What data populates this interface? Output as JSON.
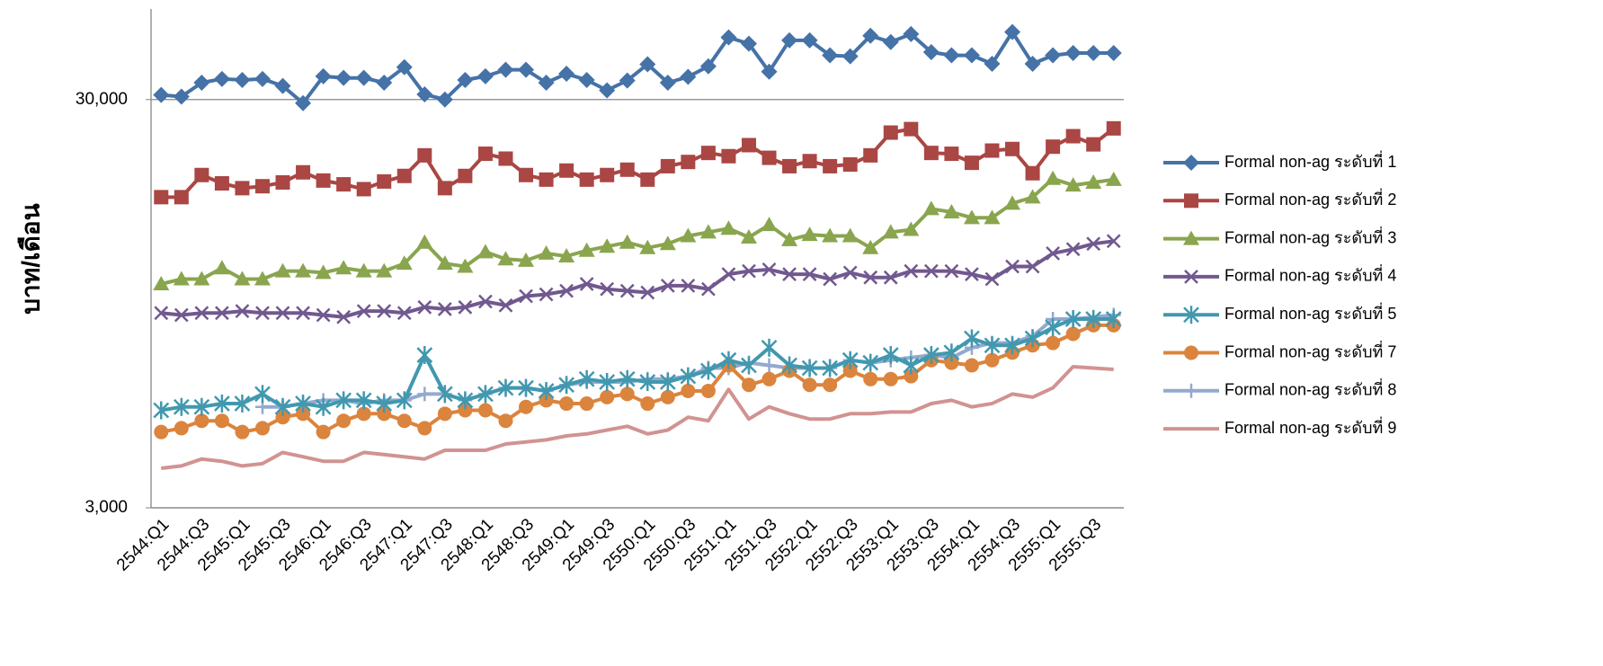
{
  "chart_data": {
    "type": "line",
    "y_label": "บาท/เดือน",
    "log_scale": true,
    "grid": true,
    "legend": "right",
    "ylim": [
      3000,
      50000
    ],
    "yticks": [
      {
        "value": 3000,
        "label": "3,000"
      },
      {
        "value": 30000,
        "label": "30,000"
      }
    ],
    "categories": [
      "2544:Q1",
      null,
      "2544:Q3",
      null,
      "2545:Q1",
      null,
      "2545:Q3",
      null,
      "2546:Q1",
      null,
      "2546:Q3",
      null,
      "2547:Q1",
      null,
      "2547:Q3",
      null,
      "2548:Q1",
      null,
      "2548:Q3",
      null,
      "2549:Q1",
      null,
      "2549:Q3",
      null,
      "2550:Q1",
      null,
      "2550:Q3",
      null,
      "2551:Q1",
      null,
      "2551:Q3",
      null,
      "2552:Q1",
      null,
      "2552:Q3",
      null,
      "2553:Q1",
      null,
      "2553:Q3",
      null,
      "2554:Q1",
      null,
      "2554:Q3",
      null,
      "2555:Q1",
      null,
      "2555:Q3",
      null
    ],
    "series": [
      {
        "name": "Formal non-ag ระดับที่ 1",
        "color": "#4572a7",
        "marker": "diamond",
        "values": [
          30800,
          30500,
          33000,
          33700,
          33500,
          33700,
          32400,
          29400,
          34200,
          33900,
          33900,
          33000,
          36000,
          30900,
          30000,
          33500,
          34200,
          35500,
          35500,
          33000,
          34700,
          33500,
          31600,
          33400,
          36600,
          33000,
          34100,
          36200,
          42600,
          41100,
          35100,
          41900,
          41900,
          38500,
          38300,
          43000,
          41500,
          43400,
          39200,
          38500,
          38500,
          36700,
          43900,
          36700,
          38500,
          39000,
          39000,
          39000
        ]
      },
      {
        "name": "Formal non-ag ระดับที่ 2",
        "color": "#aa4643",
        "marker": "square",
        "values": [
          17300,
          17300,
          19600,
          18700,
          18200,
          18400,
          18800,
          19900,
          19000,
          18600,
          18100,
          18900,
          19500,
          21900,
          18200,
          19500,
          22100,
          21500,
          19600,
          19100,
          20100,
          19100,
          19600,
          20200,
          19100,
          20600,
          21100,
          22200,
          21800,
          23200,
          21600,
          20600,
          21200,
          20600,
          20800,
          21900,
          24900,
          25400,
          22200,
          22100,
          21000,
          22500,
          22700,
          19800,
          23000,
          24400,
          23300,
          25500
        ]
      },
      {
        "name": "Formal non-ag ระดับที่ 3",
        "color": "#89a54e",
        "marker": "triangle",
        "values": [
          10600,
          10900,
          10900,
          11600,
          10900,
          10900,
          11400,
          11400,
          11300,
          11600,
          11400,
          11400,
          11900,
          13400,
          11900,
          11700,
          12700,
          12200,
          12100,
          12600,
          12400,
          12800,
          13100,
          13400,
          13000,
          13300,
          13900,
          14200,
          14500,
          13800,
          14800,
          13600,
          14000,
          13900,
          13900,
          13000,
          14200,
          14400,
          16200,
          15900,
          15400,
          15400,
          16700,
          17300,
          19200,
          18500,
          18800,
          19100
        ]
      },
      {
        "name": "Formal non-ag ระดับที่ 4",
        "color": "#71588f",
        "marker": "x",
        "values": [
          9000,
          8900,
          9000,
          9000,
          9100,
          9000,
          9000,
          9000,
          8900,
          8800,
          9100,
          9100,
          9000,
          9300,
          9200,
          9300,
          9600,
          9400,
          9900,
          10000,
          10200,
          10600,
          10300,
          10200,
          10100,
          10500,
          10500,
          10300,
          11200,
          11400,
          11500,
          11200,
          11200,
          10900,
          11300,
          11000,
          11000,
          11400,
          11400,
          11400,
          11200,
          10900,
          11700,
          11700,
          12600,
          12900,
          13300,
          13500
        ]
      },
      {
        "name": "Formal non-ag ระดับที่ 5",
        "color": "#4198af",
        "marker": "star",
        "values": [
          5200,
          5300,
          5300,
          5400,
          5400,
          5700,
          5300,
          5400,
          5300,
          5500,
          5500,
          5400,
          5500,
          7100,
          5700,
          5500,
          5700,
          5900,
          5900,
          5800,
          6000,
          6200,
          6100,
          6200,
          6100,
          6100,
          6300,
          6500,
          6900,
          6700,
          7400,
          6700,
          6600,
          6600,
          6900,
          6800,
          7100,
          6700,
          7100,
          7200,
          7800,
          7500,
          7500,
          7800,
          8300,
          8700,
          8700,
          8700
        ]
      },
      {
        "name": "Formal non-ag ระดับที่ 7",
        "color": "#db843d",
        "marker": "circle",
        "values": [
          4600,
          4700,
          4900,
          4900,
          4600,
          4700,
          5000,
          5100,
          4600,
          4900,
          5100,
          5100,
          4900,
          4700,
          5100,
          5200,
          5200,
          4900,
          5300,
          5500,
          5400,
          5400,
          5600,
          5700,
          5400,
          5600,
          5800,
          5800,
          6700,
          6000,
          6200,
          6500,
          6000,
          6000,
          6500,
          6200,
          6200,
          6300,
          6900,
          6800,
          6700,
          6900,
          7200,
          7500,
          7600,
          8000,
          8400,
          8400
        ]
      },
      {
        "name": "Formal non-ag ระดับที่ 8",
        "color": "#93a9cf",
        "marker": "plus",
        "values": [
          null,
          null,
          null,
          null,
          null,
          5300,
          5300,
          5400,
          5500,
          5500,
          5400,
          5500,
          5500,
          5700,
          5700,
          5500,
          5700,
          5900,
          5900,
          5800,
          6000,
          6100,
          6100,
          6100,
          6200,
          6200,
          6300,
          6600,
          6600,
          6800,
          6700,
          6600,
          6600,
          6600,
          6900,
          6800,
          6900,
          7000,
          7100,
          7000,
          7400,
          7600,
          7600,
          7900,
          8700,
          8700,
          8800,
          8900
        ]
      },
      {
        "name": "Formal non-ag ระดับที่ 9",
        "color": "#d19392",
        "marker": "none",
        "values": [
          3750,
          3800,
          3950,
          3900,
          3800,
          3850,
          4100,
          4000,
          3900,
          3900,
          4100,
          4050,
          4000,
          3950,
          4150,
          4150,
          4150,
          4300,
          4350,
          4400,
          4500,
          4550,
          4650,
          4750,
          4550,
          4650,
          5000,
          4900,
          5850,
          4950,
          5300,
          5100,
          4950,
          4950,
          5100,
          5100,
          5150,
          5150,
          5400,
          5500,
          5300,
          5400,
          5700,
          5600,
          5900,
          6650,
          6600,
          6550
        ]
      }
    ]
  }
}
